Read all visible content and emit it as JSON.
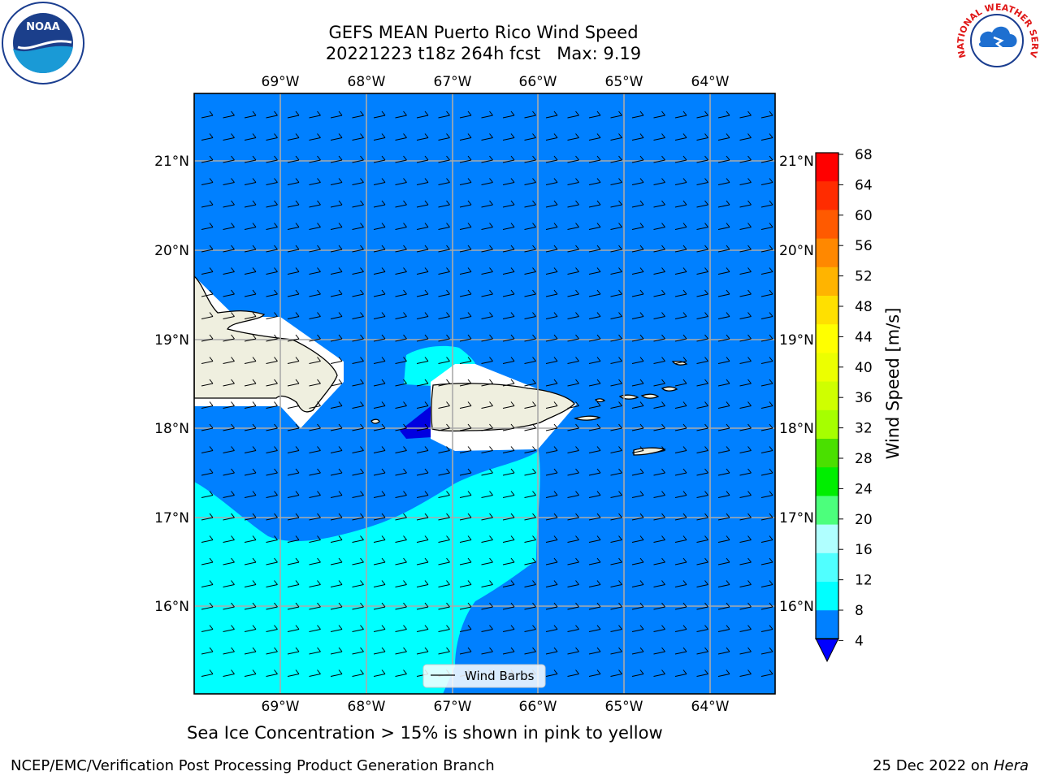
{
  "header": {
    "title_line1": "GEFS MEAN Puerto Rico Wind Speed",
    "title_line2": "20221223 t18z 264h fcst   Max: 9.19"
  },
  "logos": {
    "left": "noaa-logo",
    "right": "nws-logo",
    "left_text": "NOAA",
    "right_text": "NATIONAL WEATHER SERVICE"
  },
  "map": {
    "lon_labels": [
      "69°W",
      "68°W",
      "67°W",
      "66°W",
      "65°W",
      "64°W"
    ],
    "lat_labels": [
      "21°N",
      "20°N",
      "19°N",
      "18°N",
      "17°N",
      "16°N"
    ],
    "legend_label": "Wind Barbs",
    "colors": {
      "ocean_4_8": "#0080ff",
      "ocean_8_12": "#00ffff",
      "land": "#efefdf",
      "below_4": "#0000e0"
    }
  },
  "colorbar": {
    "label": "Wind Speed [m/s]",
    "ticks": [
      "68",
      "64",
      "60",
      "56",
      "52",
      "48",
      "44",
      "40",
      "36",
      "32",
      "28",
      "24",
      "20",
      "16",
      "12",
      "8",
      "4"
    ],
    "colors": [
      "#ff0000",
      "#ff2c00",
      "#ff5a00",
      "#ff8800",
      "#ffb400",
      "#ffe000",
      "#ffff00",
      "#ecff00",
      "#cfff00",
      "#a6ff00",
      "#4ae000",
      "#00ee00",
      "#4cff7c",
      "#b0ffff",
      "#50ffff",
      "#00ffff",
      "#0080ff"
    ],
    "extend_color": "#0000ff"
  },
  "caption": "Sea Ice Concentration > 15% is shown in pink to yellow",
  "footer": {
    "left": "NCEP/EMC/Verification Post Processing Product Generation Branch",
    "right_date": "25 Dec 2022 on ",
    "right_machine": "Hera"
  }
}
